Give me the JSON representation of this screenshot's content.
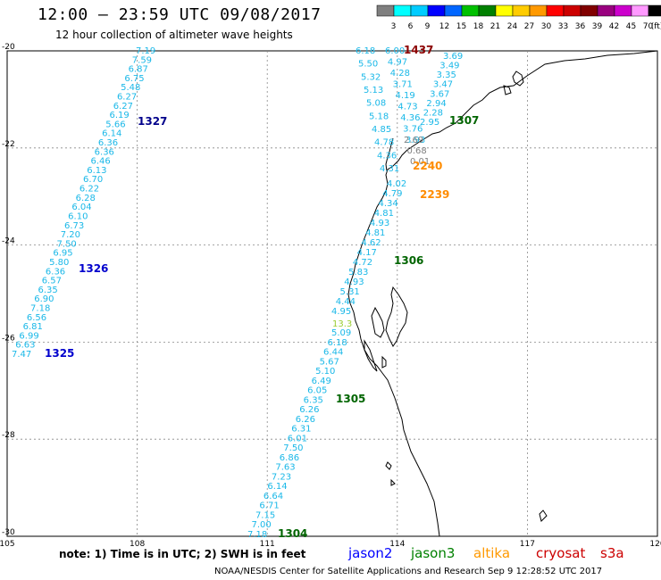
{
  "title": "12:00 – 23:59 UTC 09/08/2017",
  "subtitle": "12 hour collection of altimeter wave heights",
  "colorbar": {
    "colors": [
      "#7f7f7f",
      "#00ffff",
      "#00ccff",
      "#0000ff",
      "#0066ff",
      "#00c000",
      "#008000",
      "#ffff00",
      "#ffcc00",
      "#ff9900",
      "#ff0000",
      "#cc0000",
      "#800000",
      "#99007f",
      "#cc00cc",
      "#ff99ff",
      "#000000"
    ],
    "labels": [
      "3",
      "6",
      "9",
      "12",
      "15",
      "18",
      "21",
      "24",
      "27",
      "30",
      "33",
      "36",
      "39",
      "42",
      "45",
      "70",
      "(ft)"
    ]
  },
  "axes": {
    "lon_ticks": [
      "105",
      "108",
      "111",
      "114",
      "117",
      "120"
    ],
    "lat_ticks": [
      "-20",
      "-22",
      "-24",
      "-26",
      "-28",
      "-30"
    ]
  },
  "passes": [
    {
      "id": "1327",
      "color": "#00008b"
    },
    {
      "id": "1326",
      "color": "#0000cd"
    },
    {
      "id": "1325",
      "color": "#0000cd"
    },
    {
      "id": "1437",
      "color": "#8b0000"
    },
    {
      "id": "1307",
      "color": "#006400"
    },
    {
      "id": "2240",
      "color": "#ff8c00"
    },
    {
      "id": "2239",
      "color": "#ff8c00"
    },
    {
      "id": "1306",
      "color": "#006400"
    },
    {
      "id": "1305",
      "color": "#006400"
    },
    {
      "id": "1304",
      "color": "#006400"
    }
  ],
  "tracks": {
    "pass_1327_1325": [
      "7.19",
      "7.59",
      "6.87",
      "6.75",
      "5.48",
      "6.27",
      "6.27",
      "6.19",
      "5.66",
      "6.14",
      "6.36",
      "6.36",
      "6.46",
      "6.13",
      "6.70",
      "6.22",
      "6.28",
      "6.04",
      "6.10",
      "6.73",
      "7.20",
      "7.50",
      "6.95",
      "5.80",
      "6.36",
      "6.57",
      "6.35",
      "6.90",
      "7.18",
      "6.56",
      "6.81",
      "6.99",
      "6.63",
      "7.47"
    ],
    "pass_1304_1305": [
      "5.09",
      "6.18",
      "6.44",
      "5.67",
      "5.10",
      "6.49",
      "6.05",
      "6.35",
      "6.26",
      "6.26",
      "6.31",
      "6.01",
      "7.50",
      "6.86",
      "7.63",
      "7.23",
      "6.14",
      "6.64",
      "6.71",
      "7.15",
      "7.00",
      "7.18"
    ],
    "pass_1306": [
      "4.02",
      "4.79",
      "4.34",
      "4.81",
      "4.93",
      "4.81",
      "4.62",
      "4.17",
      "4.72",
      "5.83",
      "4.93",
      "5.31",
      "4.44",
      "4.95",
      "13.3"
    ],
    "north_left": [
      "6.18",
      "5.50",
      "5.32",
      "5.13",
      "5.08",
      "5.18",
      "4.85",
      "4.78",
      "4.36",
      "4.31"
    ],
    "north_mid": [
      "6.00",
      "4.97",
      "4.28",
      "3.71",
      "4.19",
      "4.73",
      "4.36",
      "3.76",
      "3.93",
      "2.69",
      "0.68",
      "0.01"
    ],
    "north_right": [
      "3.69",
      "3.49",
      "3.35",
      "3.47",
      "3.67",
      "2.94",
      "2.28",
      "2.95"
    ]
  },
  "note": "note: 1) Time is in UTC; 2) SWH is in feet",
  "satellites": [
    {
      "name": "jason2",
      "color": "#0000ff"
    },
    {
      "name": "jason3",
      "color": "#008000"
    },
    {
      "name": "altika",
      "color": "#ff9900"
    },
    {
      "name": "cryosat",
      "color": "#cc0000"
    },
    {
      "name": "s3a",
      "color": "#cc0000"
    }
  ],
  "footer": "NOAA/NESDIS Center for Satellite Applications and Research   Sep  9 12:28:52 UTC 2017"
}
